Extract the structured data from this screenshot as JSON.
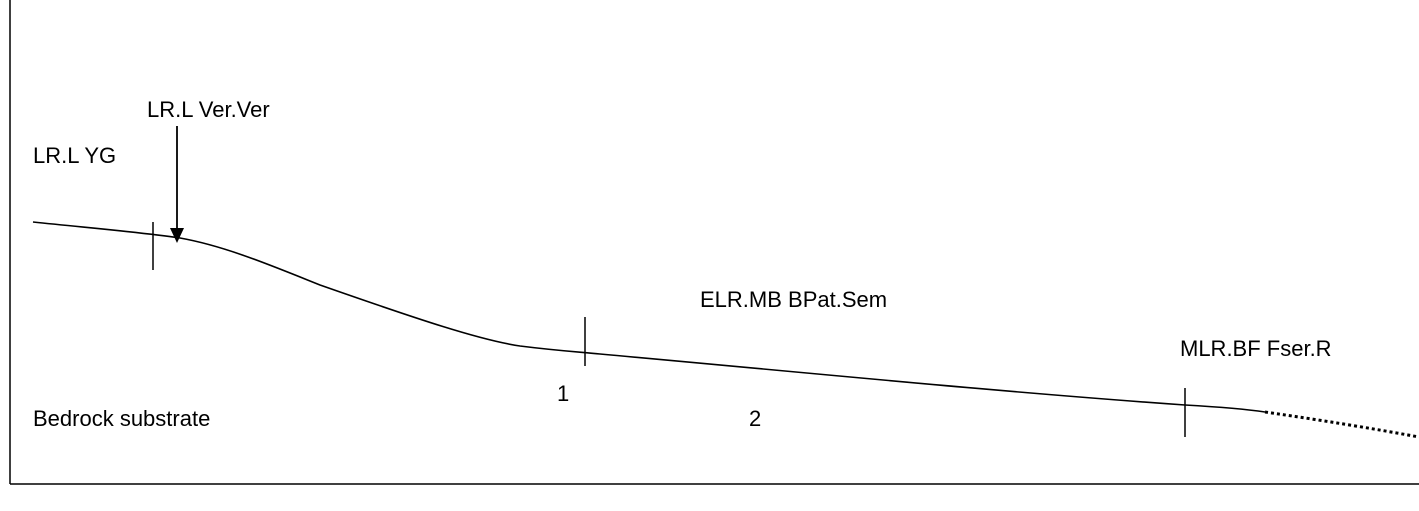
{
  "labels": {
    "lr_l_ver_ver": "LR.L Ver.Ver",
    "lr_l_yg": "LR.L YG",
    "elr_mb_bpat_sem": "ELR.MB BPat.Sem",
    "mlr_bf_fser_r": "MLR.BF Fser.R",
    "bedrock": "Bedrock substrate",
    "zone_1": "1",
    "zone_2": "2"
  },
  "colors": {
    "ink": "#000000",
    "background": "#ffffff"
  }
}
